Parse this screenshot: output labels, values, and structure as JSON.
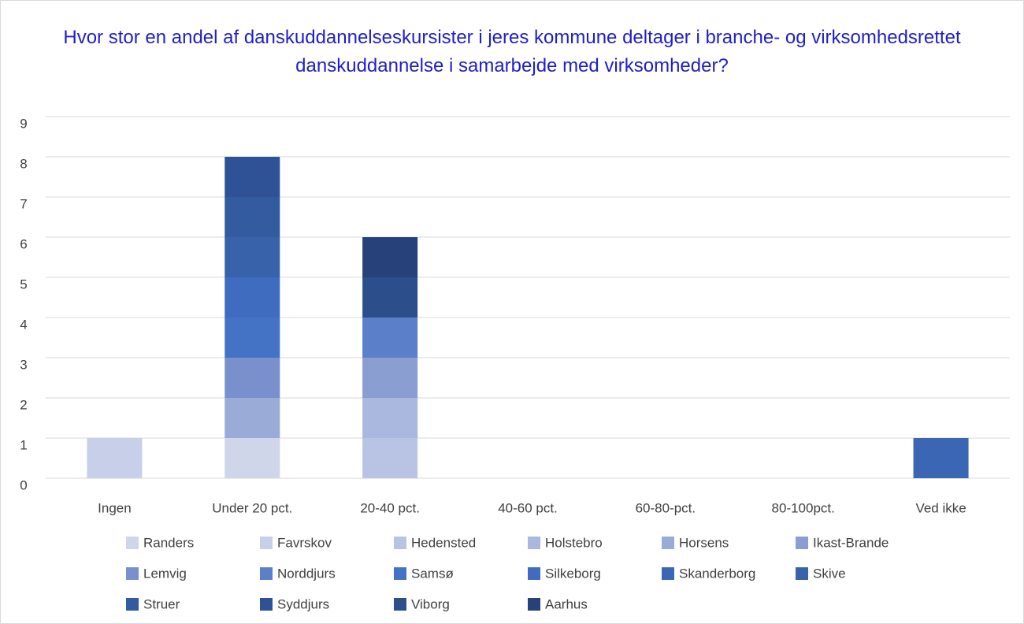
{
  "chart_data": {
    "type": "stacked_bar",
    "title": "Hvor stor en andel af danskuddannelseskursister i jeres kommune deltager i branche- og virksomhedsrettet danskuddannelse i samarbejde med virksomheder?",
    "categories": [
      "Ingen",
      "Under 20 pct.",
      "20-40 pct.",
      "40-60 pct.",
      "60-80-pct.",
      "80-100pct.",
      "Ved ikke"
    ],
    "ylim": [
      0,
      9
    ],
    "yticks": [
      0,
      1,
      2,
      3,
      4,
      5,
      6,
      7,
      8,
      9
    ],
    "grid": true,
    "series": [
      {
        "name": "Randers",
        "color": "#d0d6ea",
        "values": [
          0,
          1,
          0,
          0,
          0,
          0,
          0
        ]
      },
      {
        "name": "Favrskov",
        "color": "#c8cfe8",
        "values": [
          1,
          0,
          0,
          0,
          0,
          0,
          0
        ]
      },
      {
        "name": "Hedensted",
        "color": "#b9c3e3",
        "values": [
          0,
          0,
          1,
          0,
          0,
          0,
          0
        ]
      },
      {
        "name": "Holstebro",
        "color": "#aab8df",
        "values": [
          0,
          0,
          1,
          0,
          0,
          0,
          0
        ]
      },
      {
        "name": "Horsens",
        "color": "#9aabd8",
        "values": [
          0,
          1,
          0,
          0,
          0,
          0,
          0
        ]
      },
      {
        "name": "Ikast-Brande",
        "color": "#8a9ed2",
        "values": [
          0,
          0,
          1,
          0,
          0,
          0,
          0
        ]
      },
      {
        "name": "Lemvig",
        "color": "#7a90cc",
        "values": [
          0,
          1,
          0,
          0,
          0,
          0,
          0
        ]
      },
      {
        "name": "Norddjurs",
        "color": "#5b7fc8",
        "values": [
          0,
          0,
          1,
          0,
          0,
          0,
          0
        ]
      },
      {
        "name": "Samsø",
        "color": "#4472c4",
        "values": [
          0,
          1,
          0,
          0,
          0,
          0,
          0
        ]
      },
      {
        "name": "Silkeborg",
        "color": "#3f6cbf",
        "values": [
          0,
          1,
          0,
          0,
          0,
          0,
          0
        ]
      },
      {
        "name": "Skanderborg",
        "color": "#3b66b3",
        "values": [
          0,
          0,
          0,
          0,
          0,
          0,
          1
        ]
      },
      {
        "name": "Skive",
        "color": "#3862aa",
        "values": [
          0,
          1,
          0,
          0,
          0,
          0,
          0
        ]
      },
      {
        "name": "Struer",
        "color": "#335ba0",
        "values": [
          0,
          1,
          0,
          0,
          0,
          0,
          0
        ]
      },
      {
        "name": "Syddjurs",
        "color": "#2f5296",
        "values": [
          0,
          1,
          0,
          0,
          0,
          0,
          0
        ]
      },
      {
        "name": "Viborg",
        "color": "#2c4f8c",
        "values": [
          0,
          0,
          1,
          0,
          0,
          0,
          0
        ]
      },
      {
        "name": "Aarhus",
        "color": "#27427a",
        "values": [
          0,
          0,
          1,
          0,
          0,
          0,
          0
        ]
      }
    ]
  }
}
